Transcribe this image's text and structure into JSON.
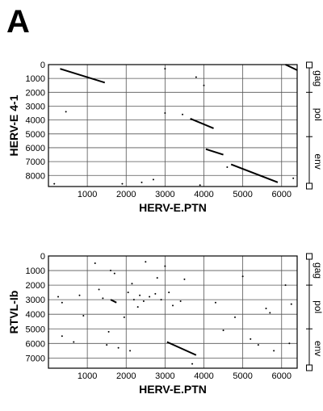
{
  "panel_label": "A",
  "chart_data": [
    {
      "type": "scatter",
      "title": "",
      "xlabel": "HERV-E.PTN",
      "ylabel": "HERV-E 4-1",
      "xlim": [
        0,
        6400
      ],
      "ylim": [
        8800,
        0
      ],
      "x_ticks": [
        "1000",
        "2000",
        "3000",
        "4000",
        "5000",
        "6000"
      ],
      "x_tick_values": [
        1000,
        2000,
        3000,
        4000,
        5000,
        6000
      ],
      "y_ticks": [
        "0",
        "1000",
        "2000",
        "3000",
        "4000",
        "5000",
        "6000",
        "7000",
        "8000"
      ],
      "y_tick_values": [
        0,
        1000,
        2000,
        3000,
        4000,
        5000,
        6000,
        7000,
        8000
      ],
      "grid": true,
      "genes": [
        {
          "name": "gag",
          "range": [
            0,
            2000
          ]
        },
        {
          "name": "pol",
          "range": [
            2000,
            5200
          ]
        },
        {
          "name": "env",
          "range": [
            5200,
            8800
          ]
        }
      ],
      "diagonals": [
        {
          "x": [
            300,
            1450
          ],
          "y": [
            300,
            1300
          ]
        },
        {
          "x": [
            3650,
            4250
          ],
          "y": [
            3900,
            4600
          ]
        },
        {
          "x": [
            4050,
            4500
          ],
          "y": [
            6100,
            6500
          ]
        },
        {
          "x": [
            4700,
            5900
          ],
          "y": [
            7200,
            8500
          ]
        },
        {
          "x": [
            6100,
            6400
          ],
          "y": [
            0,
            400
          ]
        }
      ],
      "points": [
        {
          "x": 150,
          "y": 8600
        },
        {
          "x": 1000,
          "y": 900
        },
        {
          "x": 3000,
          "y": 3500
        },
        {
          "x": 3450,
          "y": 3600
        },
        {
          "x": 4600,
          "y": 7400
        },
        {
          "x": 2700,
          "y": 8300
        },
        {
          "x": 3900,
          "y": 8700
        },
        {
          "x": 3000,
          "y": 300
        },
        {
          "x": 3800,
          "y": 900
        },
        {
          "x": 1900,
          "y": 8600
        },
        {
          "x": 2400,
          "y": 8500
        },
        {
          "x": 6300,
          "y": 8200
        },
        {
          "x": 450,
          "y": 3400
        },
        {
          "x": 4000,
          "y": 1500
        }
      ]
    },
    {
      "type": "scatter",
      "title": "",
      "xlabel": "HERV-E.PTN",
      "ylabel": "RTVL-Ib",
      "xlim": [
        0,
        6400
      ],
      "ylim": [
        7700,
        0
      ],
      "x_ticks": [
        "1000",
        "2000",
        "3000",
        "4000",
        "5000",
        "6000"
      ],
      "x_tick_values": [
        1000,
        2000,
        3000,
        4000,
        5000,
        6000
      ],
      "y_ticks": [
        "0",
        "1000",
        "2000",
        "3000",
        "4000",
        "5000",
        "6000",
        "7000"
      ],
      "y_tick_values": [
        0,
        1000,
        2000,
        3000,
        4000,
        5000,
        6000,
        7000
      ],
      "grid": true,
      "genes": [
        {
          "name": "gag",
          "range": [
            0,
            2000
          ]
        },
        {
          "name": "pol",
          "range": [
            2000,
            5000
          ]
        },
        {
          "name": "env",
          "range": [
            5000,
            7700
          ]
        }
      ],
      "diagonals": [
        {
          "x": [
            3050,
            3800
          ],
          "y": [
            5900,
            6800
          ]
        },
        {
          "x": [
            1600,
            1750
          ],
          "y": [
            3000,
            3200
          ]
        }
      ],
      "points": [
        {
          "x": 1200,
          "y": 500
        },
        {
          "x": 1600,
          "y": 1000
        },
        {
          "x": 250,
          "y": 2800
        },
        {
          "x": 350,
          "y": 3200
        },
        {
          "x": 800,
          "y": 2700
        },
        {
          "x": 1300,
          "y": 2300
        },
        {
          "x": 1400,
          "y": 2900
        },
        {
          "x": 2050,
          "y": 2500
        },
        {
          "x": 2200,
          "y": 3000
        },
        {
          "x": 2350,
          "y": 2700
        },
        {
          "x": 2450,
          "y": 3100
        },
        {
          "x": 2600,
          "y": 2800
        },
        {
          "x": 2750,
          "y": 2600
        },
        {
          "x": 2900,
          "y": 3000
        },
        {
          "x": 3100,
          "y": 2500
        },
        {
          "x": 3200,
          "y": 3400
        },
        {
          "x": 2300,
          "y": 3500
        },
        {
          "x": 3400,
          "y": 3100
        },
        {
          "x": 1500,
          "y": 6100
        },
        {
          "x": 1800,
          "y": 6300
        },
        {
          "x": 2100,
          "y": 6500
        },
        {
          "x": 1550,
          "y": 5200
        },
        {
          "x": 1950,
          "y": 4200
        },
        {
          "x": 350,
          "y": 5500
        },
        {
          "x": 5600,
          "y": 3600
        },
        {
          "x": 5700,
          "y": 3900
        },
        {
          "x": 6250,
          "y": 3300
        },
        {
          "x": 5200,
          "y": 5700
        },
        {
          "x": 5400,
          "y": 6100
        },
        {
          "x": 5800,
          "y": 6500
        },
        {
          "x": 4500,
          "y": 5100
        },
        {
          "x": 3500,
          "y": 1600
        },
        {
          "x": 3000,
          "y": 700
        },
        {
          "x": 2500,
          "y": 400
        },
        {
          "x": 2800,
          "y": 1500
        },
        {
          "x": 5000,
          "y": 1400
        },
        {
          "x": 900,
          "y": 4100
        },
        {
          "x": 3700,
          "y": 7400
        },
        {
          "x": 6100,
          "y": 2000
        },
        {
          "x": 4300,
          "y": 3200
        },
        {
          "x": 6200,
          "y": 6000
        },
        {
          "x": 1700,
          "y": 1200
        },
        {
          "x": 650,
          "y": 5900
        },
        {
          "x": 2150,
          "y": 1900
        },
        {
          "x": 4800,
          "y": 4200
        }
      ]
    }
  ]
}
